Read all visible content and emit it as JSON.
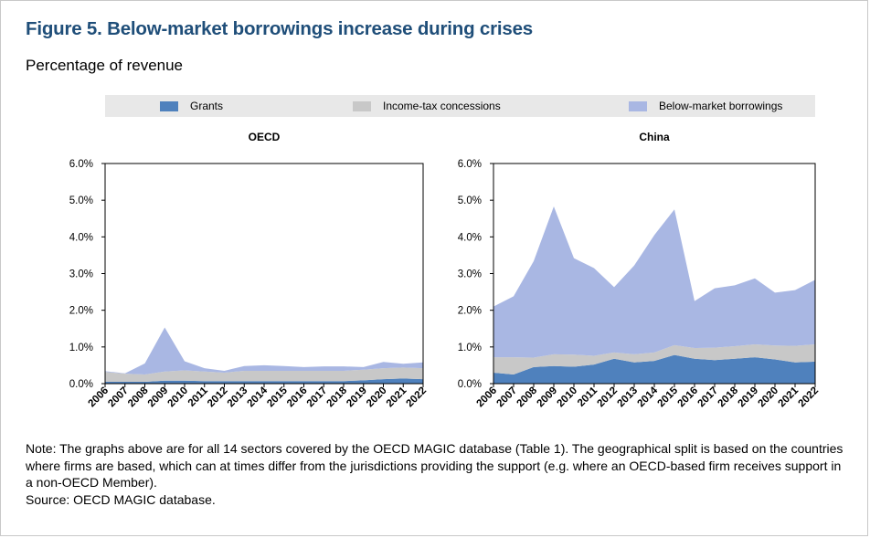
{
  "figure": {
    "title": "Figure 5. Below-market borrowings increase during crises",
    "subtitle": "Percentage of revenue",
    "note": "Note: The graphs above are for all 14 sectors covered by the OECD MAGIC database (Table 1). The geographical split is based on the countries where firms are based, which can at times differ from the jurisdictions providing the support (e.g. where an OECD-based firm receives support in a non-OECD Member).",
    "source": "Source: OECD MAGIC database."
  },
  "legend": [
    {
      "label": "Grants",
      "color": "#4f81bd"
    },
    {
      "label": "Income-tax concessions",
      "color": "#c8c8c8"
    },
    {
      "label": "Below-market borrowings",
      "color": "#a9b7e3"
    }
  ],
  "chart_data": [
    {
      "type": "area",
      "stacked": true,
      "title": "OECD",
      "x": [
        "2006",
        "2007",
        "2008",
        "2009",
        "2010",
        "2011",
        "2012",
        "2013",
        "2014",
        "2015",
        "2016",
        "2017",
        "2018",
        "2019",
        "2020",
        "2021",
        "2022"
      ],
      "ylim": [
        0,
        6
      ],
      "yticks": [
        "0.0%",
        "1.0%",
        "2.0%",
        "3.0%",
        "4.0%",
        "5.0%",
        "6.0%"
      ],
      "series": [
        {
          "name": "Grants",
          "values": [
            0.05,
            0.05,
            0.05,
            0.08,
            0.08,
            0.07,
            0.07,
            0.07,
            0.07,
            0.07,
            0.07,
            0.07,
            0.07,
            0.09,
            0.12,
            0.14,
            0.12
          ]
        },
        {
          "name": "Income-tax concessions",
          "values": [
            0.27,
            0.22,
            0.2,
            0.25,
            0.28,
            0.26,
            0.23,
            0.28,
            0.28,
            0.28,
            0.28,
            0.28,
            0.28,
            0.29,
            0.3,
            0.3,
            0.3
          ]
        },
        {
          "name": "Below-market borrowings",
          "values": [
            0.02,
            0.01,
            0.3,
            1.2,
            0.25,
            0.09,
            0.05,
            0.13,
            0.15,
            0.13,
            0.1,
            0.12,
            0.12,
            0.07,
            0.17,
            0.1,
            0.16
          ]
        }
      ]
    },
    {
      "type": "area",
      "stacked": true,
      "title": "China",
      "x": [
        "2006",
        "2007",
        "2008",
        "2009",
        "2010",
        "2011",
        "2012",
        "2013",
        "2014",
        "2015",
        "2016",
        "2017",
        "2018",
        "2019",
        "2020",
        "2021",
        "2022"
      ],
      "ylim": [
        0,
        6
      ],
      "yticks": [
        "0.0%",
        "1.0%",
        "2.0%",
        "3.0%",
        "4.0%",
        "5.0%",
        "6.0%"
      ],
      "series": [
        {
          "name": "Grants",
          "values": [
            0.3,
            0.25,
            0.45,
            0.48,
            0.46,
            0.52,
            0.68,
            0.58,
            0.62,
            0.78,
            0.68,
            0.64,
            0.68,
            0.72,
            0.66,
            0.58,
            0.6
          ]
        },
        {
          "name": "Income-tax concessions",
          "values": [
            0.42,
            0.47,
            0.26,
            0.32,
            0.33,
            0.24,
            0.17,
            0.22,
            0.23,
            0.27,
            0.29,
            0.34,
            0.34,
            0.35,
            0.38,
            0.45,
            0.47
          ]
        },
        {
          "name": "Below-market borrowings",
          "values": [
            1.38,
            1.66,
            2.63,
            4.03,
            2.63,
            2.39,
            1.78,
            2.42,
            3.2,
            3.7,
            1.28,
            1.62,
            1.66,
            1.8,
            1.44,
            1.52,
            1.76
          ]
        }
      ]
    }
  ]
}
